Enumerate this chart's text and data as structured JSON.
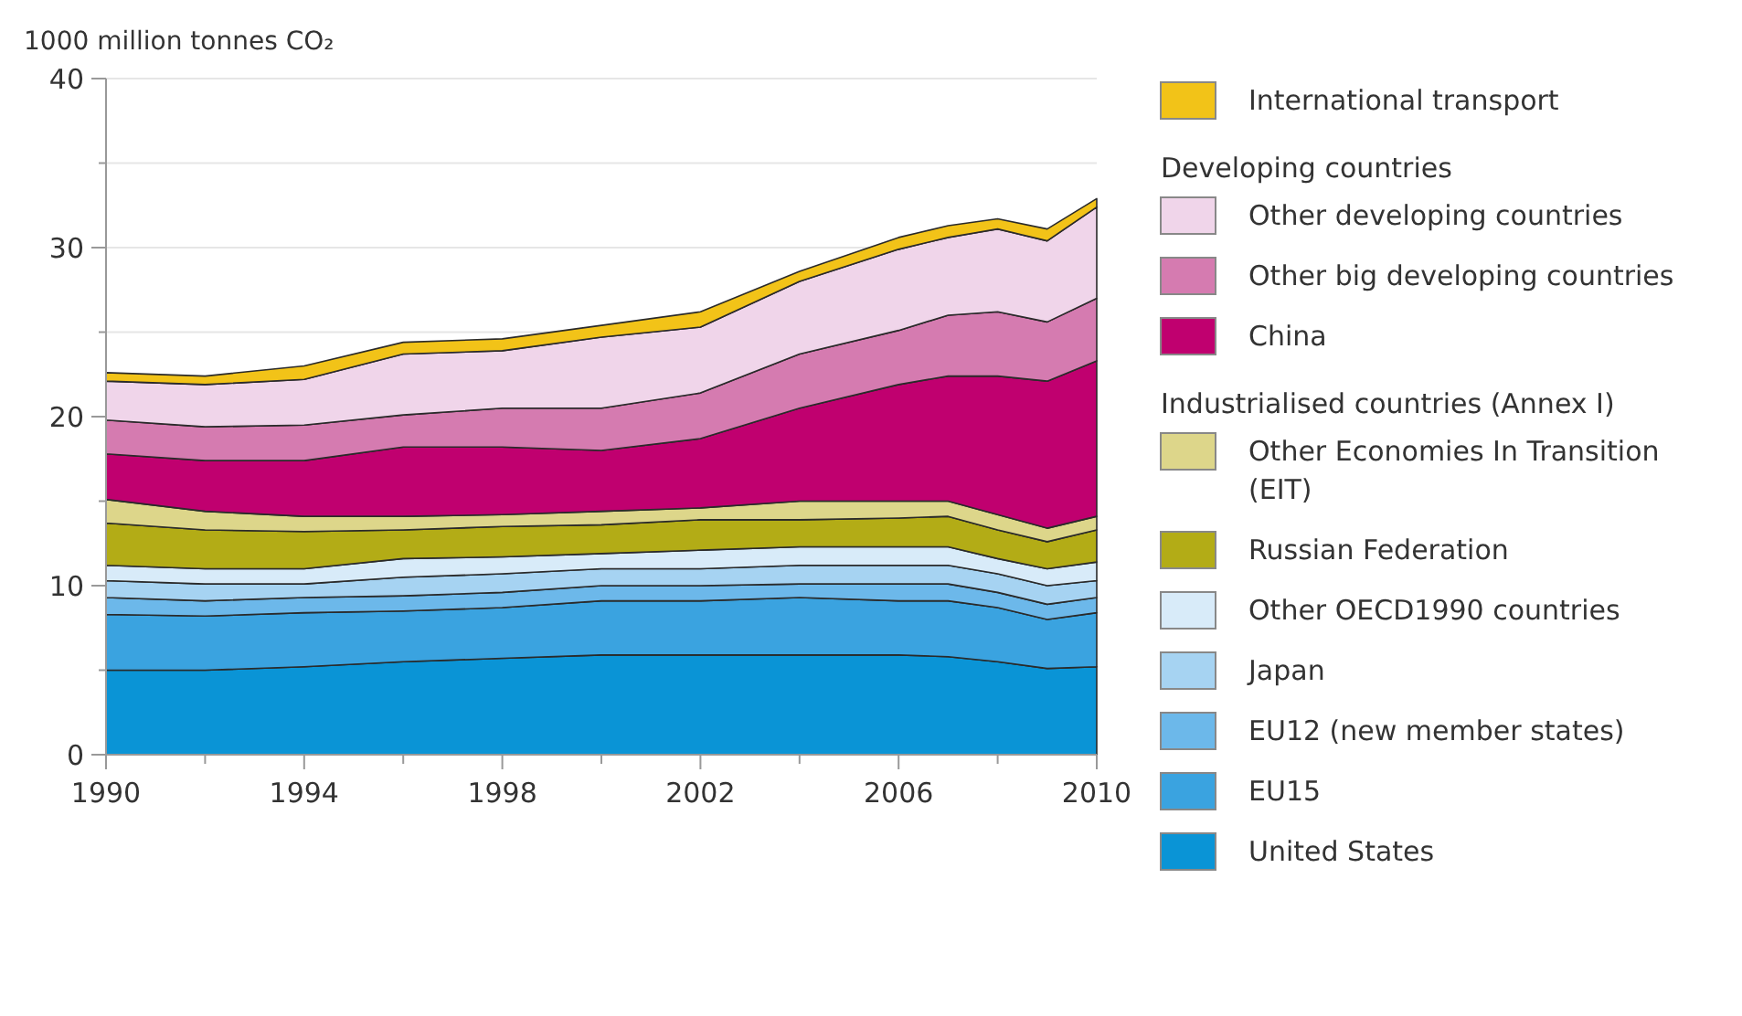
{
  "chart_data": {
    "type": "area",
    "stacked": true,
    "ylabel": "1000 million tonnes CO₂",
    "x": [
      1990,
      1992,
      1994,
      1996,
      1998,
      2000,
      2002,
      2004,
      2006,
      2007,
      2008,
      2009,
      2010
    ],
    "xlim": [
      1990,
      2010
    ],
    "xticks": [
      1990,
      {
        "value": 1992,
        "label": null
      },
      1994,
      {
        "value": 1996,
        "label": null
      },
      1998,
      {
        "value": 2000,
        "label": null
      },
      2002,
      {
        "value": 2004,
        "label": null
      },
      2006,
      {
        "value": 2008,
        "label": null
      },
      2010
    ],
    "ylim": [
      0,
      40
    ],
    "yticks": [
      0,
      {
        "value": 5,
        "label": null
      },
      10,
      {
        "value": 15,
        "label": null
      },
      20,
      {
        "value": 25,
        "label": null
      },
      30,
      {
        "value": 35,
        "label": null
      },
      40
    ],
    "grid": "y",
    "legend": "right",
    "annotations": [
      "Developing countries",
      "Industrialised countries (Annex I)"
    ],
    "series": [
      {
        "name": "United States",
        "color": "#0a94d6",
        "values": [
          5.0,
          5.0,
          5.2,
          5.5,
          5.7,
          5.9,
          5.9,
          5.9,
          5.9,
          5.8,
          5.5,
          5.1,
          5.2
        ]
      },
      {
        "name": "EU15",
        "color": "#3aa3e0",
        "values": [
          3.3,
          3.2,
          3.2,
          3.0,
          3.0,
          3.2,
          3.2,
          3.4,
          3.2,
          3.3,
          3.2,
          2.9,
          3.2
        ]
      },
      {
        "name": "EU12 (new member states)",
        "color": "#6cb8ea",
        "values": [
          1.0,
          0.9,
          0.9,
          0.9,
          0.9,
          0.9,
          0.9,
          0.8,
          1.0,
          1.0,
          0.9,
          0.9,
          0.9
        ]
      },
      {
        "name": "Japan",
        "color": "#a6d3f2",
        "values": [
          1.0,
          1.0,
          0.8,
          1.1,
          1.1,
          1.0,
          1.0,
          1.1,
          1.1,
          1.1,
          1.1,
          1.1,
          1.0
        ]
      },
      {
        "name": "Other OECD1990 countries",
        "color": "#d8ebf9",
        "values": [
          0.9,
          0.9,
          0.9,
          1.1,
          1.0,
          0.9,
          1.1,
          1.1,
          1.1,
          1.1,
          0.9,
          1.0,
          1.1
        ]
      },
      {
        "name": "Russian Federation",
        "color": "#b3ac16",
        "values": [
          2.5,
          2.3,
          2.2,
          1.7,
          1.8,
          1.7,
          1.8,
          1.6,
          1.7,
          1.8,
          1.7,
          1.6,
          1.9
        ]
      },
      {
        "name": "Other Economies In Transition (EIT)",
        "color": "#ddd68a",
        "values": [
          1.4,
          1.1,
          0.9,
          0.8,
          0.7,
          0.8,
          0.7,
          1.1,
          1.0,
          0.9,
          0.9,
          0.8,
          0.8
        ]
      },
      {
        "name": "China",
        "color": "#c0006f",
        "values": [
          2.7,
          3.0,
          3.3,
          4.1,
          4.0,
          3.6,
          4.1,
          5.5,
          6.9,
          7.4,
          8.2,
          8.7,
          9.2
        ]
      },
      {
        "name": "Other big developing countries",
        "color": "#d57bb0",
        "values": [
          2.0,
          2.0,
          2.1,
          1.9,
          2.3,
          2.5,
          2.7,
          3.2,
          3.2,
          3.6,
          3.8,
          3.5,
          3.7
        ]
      },
      {
        "name": "Other developing countries",
        "color": "#f0d5ea",
        "values": [
          2.3,
          2.5,
          2.7,
          3.6,
          3.4,
          4.2,
          3.9,
          4.3,
          4.8,
          4.6,
          4.9,
          4.8,
          5.4
        ]
      },
      {
        "name": "International transport",
        "color": "#f2c318",
        "values": [
          0.5,
          0.5,
          0.8,
          0.7,
          0.7,
          0.7,
          0.9,
          0.6,
          0.7,
          0.7,
          0.6,
          0.7,
          0.5
        ]
      }
    ]
  }
}
